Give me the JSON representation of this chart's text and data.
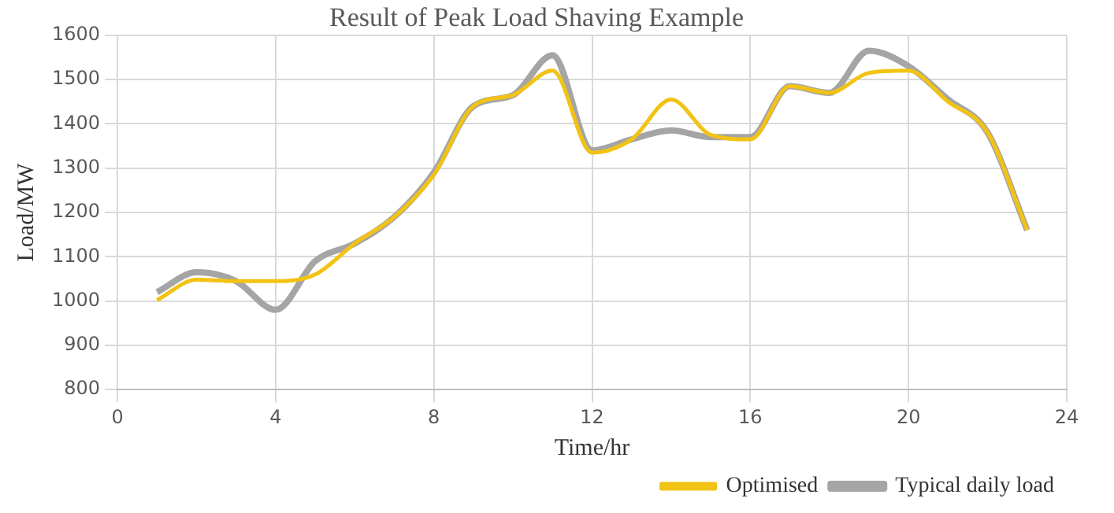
{
  "chart_data": {
    "type": "line",
    "title": "Result of Peak Load Shaving Example",
    "xlabel": "Time/hr",
    "ylabel": "Load/MW",
    "x": [
      1,
      2,
      3,
      4,
      5,
      6,
      7,
      8,
      9,
      10,
      11,
      12,
      13,
      14,
      15,
      16,
      17,
      18,
      19,
      20,
      21,
      22,
      23
    ],
    "series": [
      {
        "name": "Typical daily load",
        "color": "#a5a5a5",
        "values": [
          1020,
          1065,
          1045,
          980,
          1090,
          1130,
          1190,
          1290,
          1440,
          1465,
          1555,
          1340,
          1365,
          1385,
          1370,
          1370,
          1485,
          1470,
          1565,
          1530,
          1455,
          1380,
          1160
        ]
      },
      {
        "name": "Optimised",
        "color": "#f2c314",
        "values": [
          1002,
          1048,
          1045,
          1045,
          1060,
          1130,
          1190,
          1285,
          1440,
          1465,
          1520,
          1335,
          1365,
          1455,
          1375,
          1365,
          1485,
          1470,
          1515,
          1520,
          1450,
          1380,
          1160
        ]
      }
    ],
    "xlim": [
      0,
      24
    ],
    "xticks": [
      0,
      4,
      8,
      12,
      16,
      20,
      24
    ],
    "ylim": [
      800,
      1600
    ],
    "yticks": [
      800,
      900,
      1000,
      1100,
      1200,
      1300,
      1400,
      1500,
      1600
    ],
    "grid": true,
    "legend": "bottom right",
    "marker": "none",
    "line_style": "solid"
  }
}
